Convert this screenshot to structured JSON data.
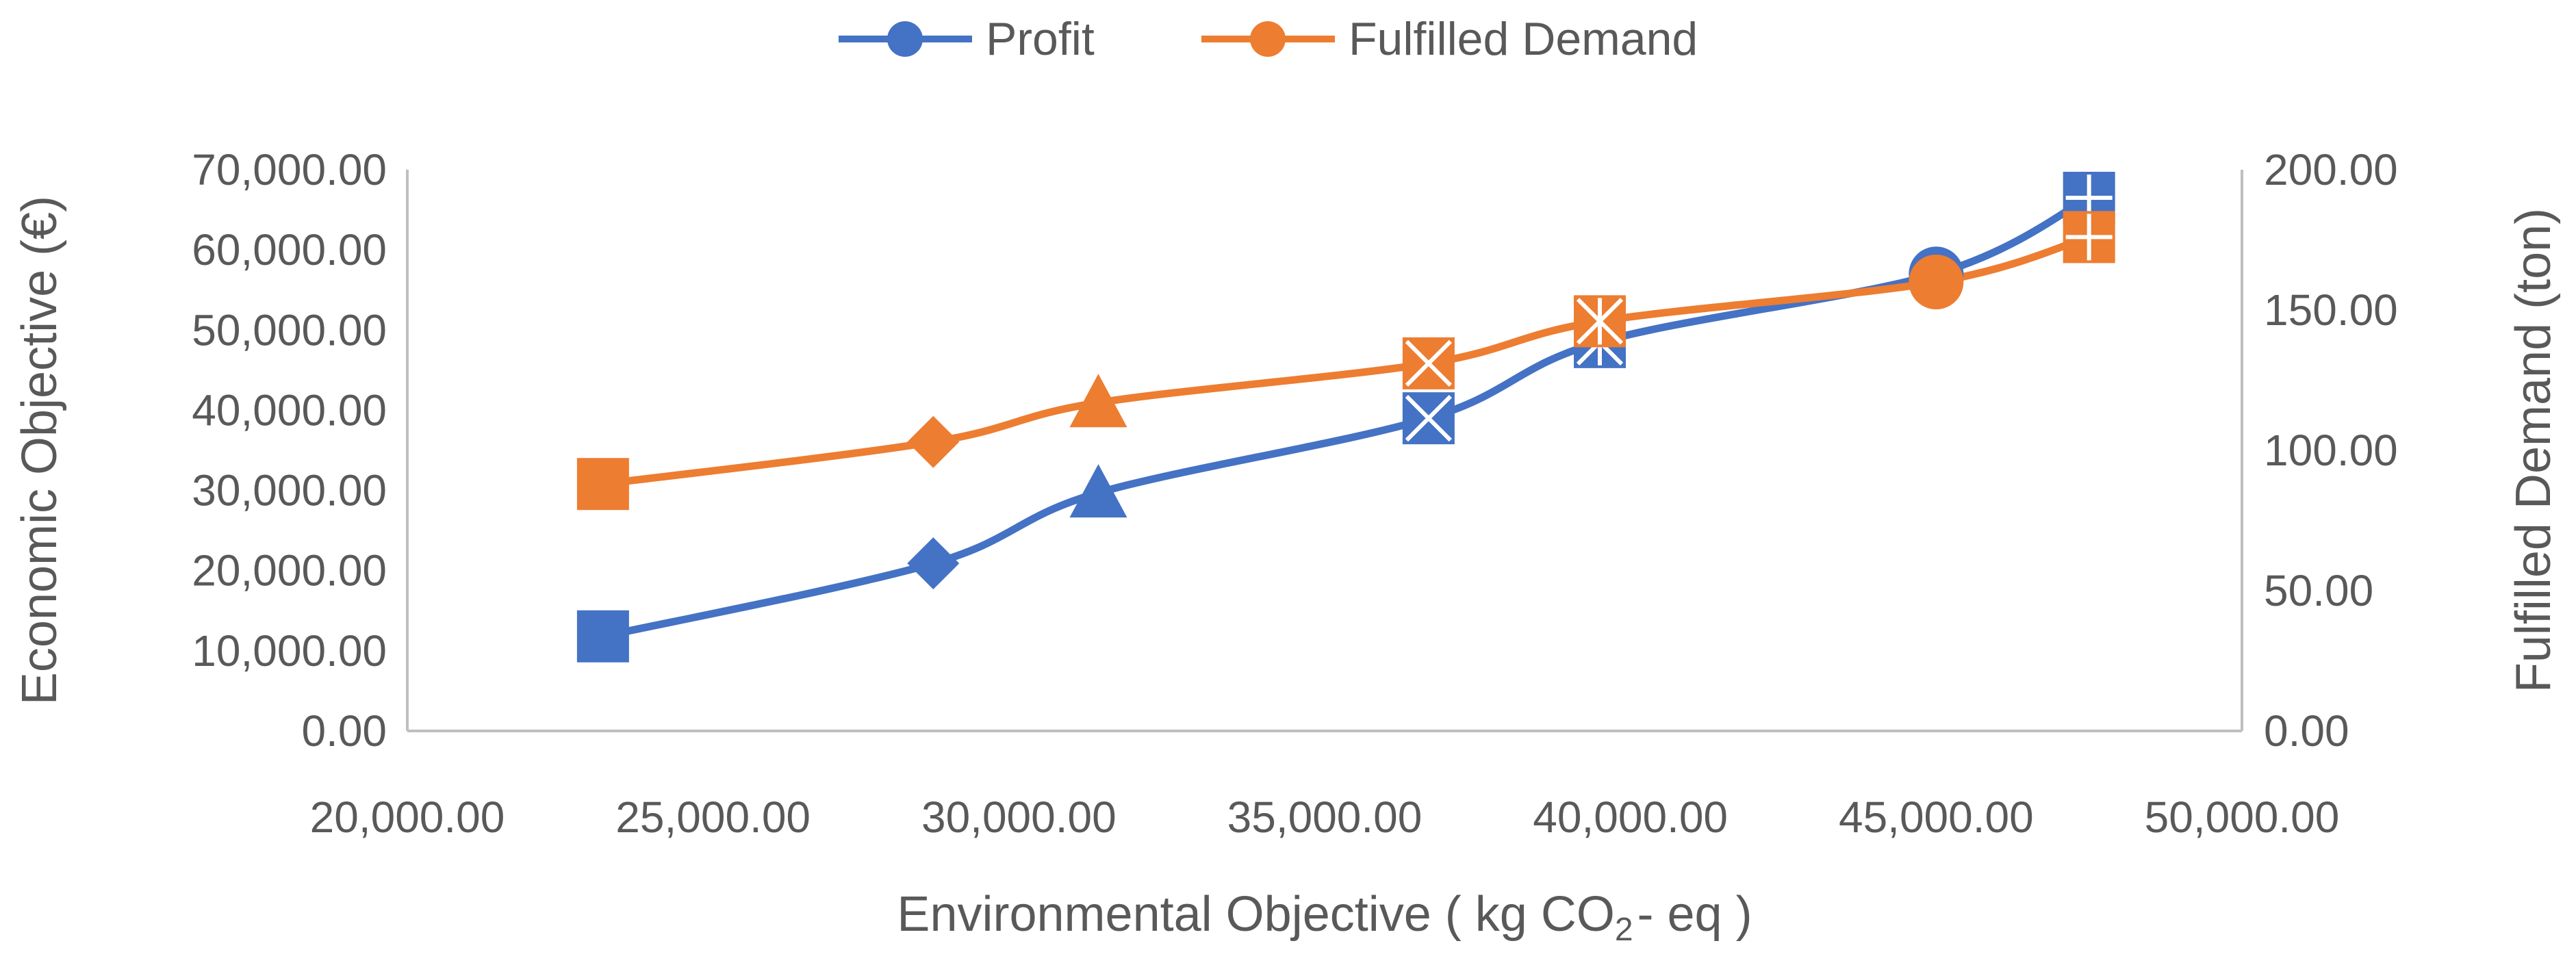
{
  "chart_data": {
    "type": "line",
    "title": "",
    "xlabel": "Environmental Objective ( kg CO",
    "xlabel_subscript": "2",
    "xlabel_suffix": "- eq )",
    "ylabel_left": "Economic Objective (€)",
    "ylabel_right": "Fulfilled Demand (ton)",
    "xlim": [
      20000,
      50000
    ],
    "ylim_left": [
      0,
      70000
    ],
    "ylim_right": [
      0,
      200
    ],
    "x_ticks": [
      "20,000.00",
      "25,000.00",
      "30,000.00",
      "35,000.00",
      "40,000.00",
      "45,000.00",
      "50,000.00"
    ],
    "y_ticks_left": [
      "0.00",
      "10,000.00",
      "20,000.00",
      "30,000.00",
      "40,000.00",
      "50,000.00",
      "60,000.00",
      "70,000.00"
    ],
    "y_ticks_right": [
      "0.00",
      "50.00",
      "100.00",
      "150.00",
      "200.00"
    ],
    "legend_position": "top-center",
    "x": [
      23200,
      28600,
      31300,
      36700,
      39500,
      45000,
      47500
    ],
    "markers": [
      "square",
      "diamond",
      "triangle",
      "x-square",
      "asterisk",
      "circle",
      "plus-square"
    ],
    "series": [
      {
        "name": "Profit",
        "axis": "left",
        "color": "#4472C4",
        "values": [
          11800,
          20900,
          29700,
          39000,
          48500,
          57000,
          66500
        ]
      },
      {
        "name": "Fulfilled Demand",
        "axis": "right",
        "color": "#ED7D31",
        "values": [
          88,
          103,
          117,
          131,
          146,
          160,
          176
        ]
      }
    ]
  }
}
